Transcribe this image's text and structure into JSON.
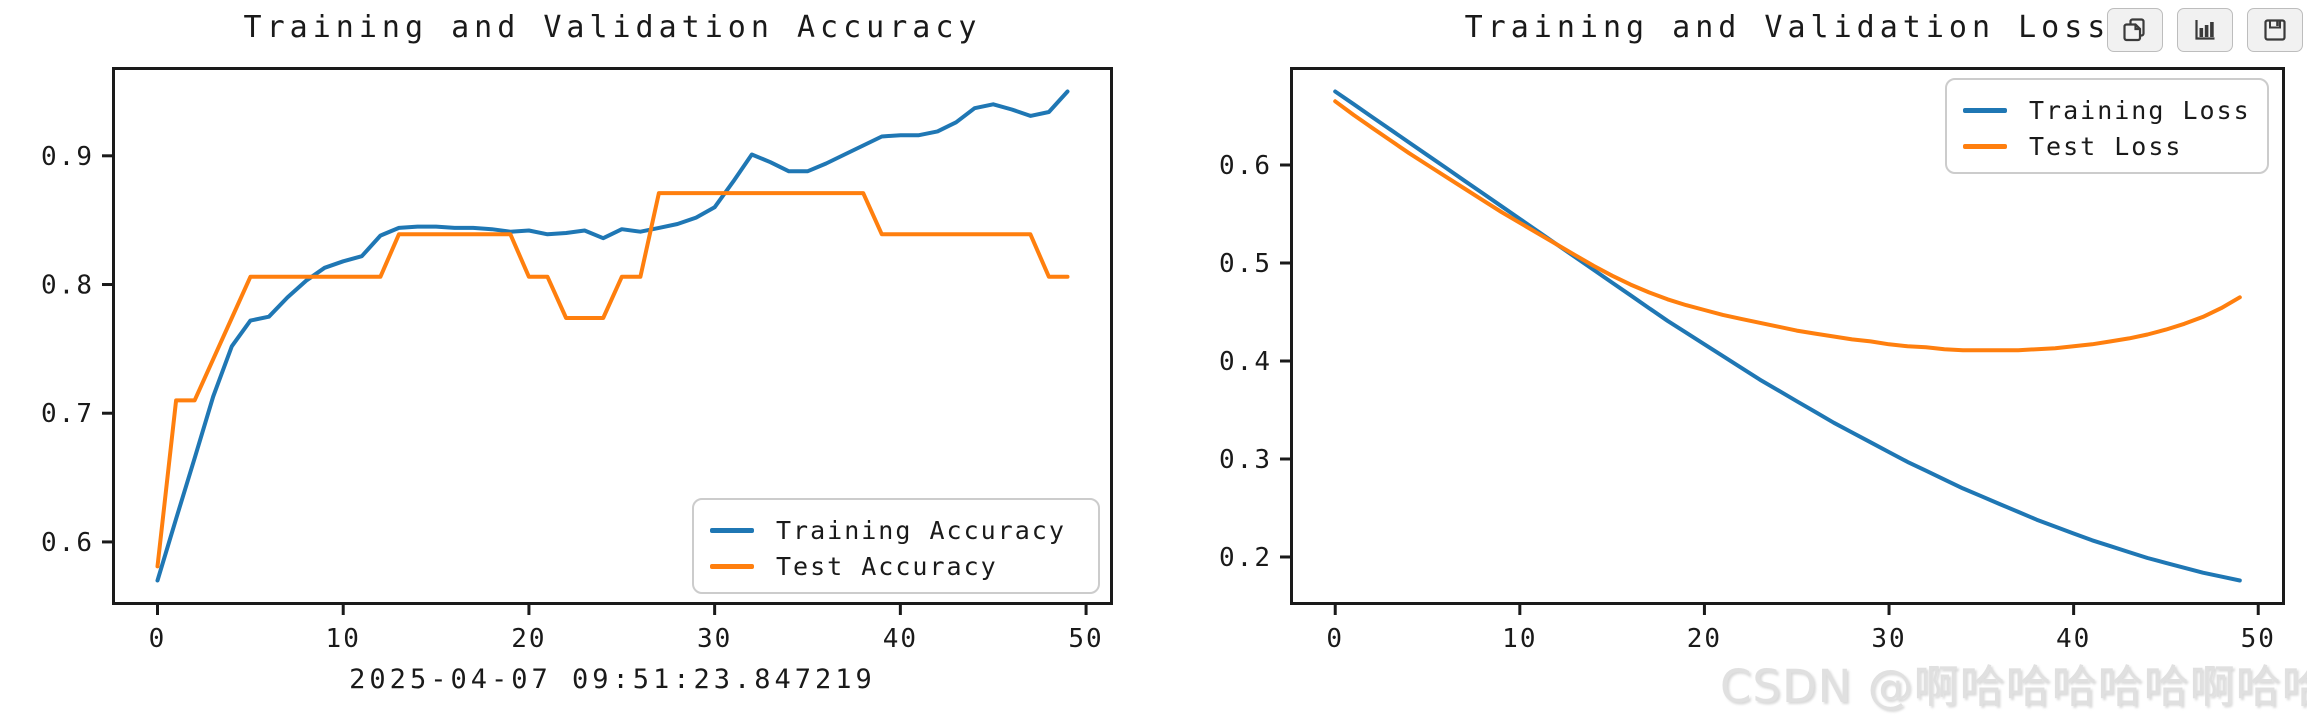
{
  "watermark": {
    "text": "CSDN @啊哈哈哈哈哈啊哈哈"
  },
  "toolbar": {
    "buttons": [
      {
        "id": "copy",
        "icon": "copy-icon"
      },
      {
        "id": "chart",
        "icon": "bar-chart-icon"
      },
      {
        "id": "save",
        "icon": "save-icon"
      }
    ]
  },
  "chart_data": [
    {
      "type": "line",
      "title": "Training and Validation Accuracy",
      "xlabel": "2025-04-07 09:51:23.847219",
      "ylabel": "",
      "x": {
        "start": 0,
        "end": 49,
        "step": 1
      },
      "xlim": [
        -2.45,
        51.45
      ],
      "ylim": [
        0.551,
        0.969
      ],
      "xticks": [
        0,
        10,
        20,
        30,
        40,
        50
      ],
      "yticks": [
        0.6,
        0.7,
        0.8,
        0.9
      ],
      "grid": false,
      "legend_position": "lower right",
      "series": [
        {
          "name": "Training Accuracy",
          "color": "#1f77b4",
          "values": [
            0.57,
            0.618,
            0.665,
            0.713,
            0.752,
            0.772,
            0.775,
            0.79,
            0.803,
            0.813,
            0.818,
            0.822,
            0.838,
            0.844,
            0.845,
            0.845,
            0.844,
            0.844,
            0.843,
            0.841,
            0.842,
            0.839,
            0.84,
            0.842,
            0.836,
            0.843,
            0.841,
            0.844,
            0.847,
            0.852,
            0.86,
            0.88,
            0.901,
            0.895,
            0.888,
            0.888,
            0.894,
            0.901,
            0.908,
            0.915,
            0.916,
            0.916,
            0.919,
            0.926,
            0.937,
            0.94,
            0.936,
            0.931,
            0.934,
            0.95
          ]
        },
        {
          "name": "Test Accuracy",
          "color": "#ff7f0e",
          "values": [
            0.581,
            0.71,
            0.71,
            0.742,
            0.774,
            0.806,
            0.806,
            0.806,
            0.806,
            0.806,
            0.806,
            0.806,
            0.806,
            0.839,
            0.839,
            0.839,
            0.839,
            0.839,
            0.839,
            0.839,
            0.806,
            0.806,
            0.774,
            0.774,
            0.774,
            0.806,
            0.806,
            0.871,
            0.871,
            0.871,
            0.871,
            0.871,
            0.871,
            0.871,
            0.871,
            0.871,
            0.871,
            0.871,
            0.871,
            0.839,
            0.839,
            0.839,
            0.839,
            0.839,
            0.839,
            0.839,
            0.839,
            0.839,
            0.806,
            0.806
          ]
        }
      ]
    },
    {
      "type": "line",
      "title": "Training and Validation Loss",
      "xlabel": "",
      "ylabel": "",
      "x": {
        "start": 0,
        "end": 49,
        "step": 1
      },
      "xlim": [
        -2.45,
        51.45
      ],
      "ylim": [
        0.151,
        0.7
      ],
      "xticks": [
        0,
        10,
        20,
        30,
        40,
        50
      ],
      "yticks": [
        0.2,
        0.3,
        0.4,
        0.5,
        0.6
      ],
      "grid": false,
      "legend_position": "upper right",
      "series": [
        {
          "name": "Training Loss",
          "color": "#1f77b4",
          "values": [
            0.675,
            0.662,
            0.649,
            0.636,
            0.623,
            0.61,
            0.597,
            0.584,
            0.571,
            0.558,
            0.545,
            0.532,
            0.519,
            0.506,
            0.493,
            0.48,
            0.467,
            0.454,
            0.441,
            0.429,
            0.417,
            0.405,
            0.393,
            0.381,
            0.37,
            0.359,
            0.348,
            0.337,
            0.327,
            0.317,
            0.307,
            0.297,
            0.288,
            0.279,
            0.27,
            0.262,
            0.254,
            0.246,
            0.238,
            0.231,
            0.224,
            0.217,
            0.211,
            0.205,
            0.199,
            0.194,
            0.189,
            0.184,
            0.18,
            0.176
          ]
        },
        {
          "name": "Test Loss",
          "color": "#ff7f0e",
          "values": [
            0.665,
            0.651,
            0.638,
            0.625,
            0.612,
            0.6,
            0.588,
            0.576,
            0.564,
            0.552,
            0.541,
            0.53,
            0.519,
            0.508,
            0.497,
            0.487,
            0.478,
            0.47,
            0.463,
            0.457,
            0.452,
            0.447,
            0.443,
            0.439,
            0.435,
            0.431,
            0.428,
            0.425,
            0.422,
            0.42,
            0.417,
            0.415,
            0.414,
            0.412,
            0.411,
            0.411,
            0.411,
            0.411,
            0.412,
            0.413,
            0.415,
            0.417,
            0.42,
            0.423,
            0.427,
            0.432,
            0.438,
            0.445,
            0.454,
            0.465
          ]
        }
      ]
    }
  ]
}
